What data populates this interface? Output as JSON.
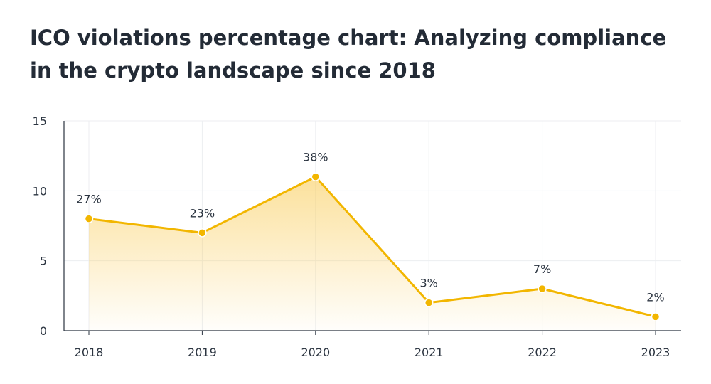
{
  "chart_data": {
    "type": "area",
    "title": "ICO violations percentage chart: Analyzing compliance in the crypto landscape since 2018",
    "xlabel": "",
    "ylabel": "",
    "categories": [
      "2018",
      "2019",
      "2020",
      "2021",
      "2022",
      "2023"
    ],
    "values": [
      8,
      7,
      11,
      2,
      3,
      1
    ],
    "data_labels": [
      "27%",
      "23%",
      "38%",
      "3%",
      "7%",
      "2%"
    ],
    "ylim": [
      0,
      15
    ],
    "yticks": [
      "0",
      "5",
      "10",
      "15"
    ],
    "grid": true,
    "legend": "none",
    "colors": {
      "line": "#F2B600",
      "area_top": "#F9C84A",
      "grid": "#ECEEF1",
      "axis": "#2B3440"
    }
  }
}
